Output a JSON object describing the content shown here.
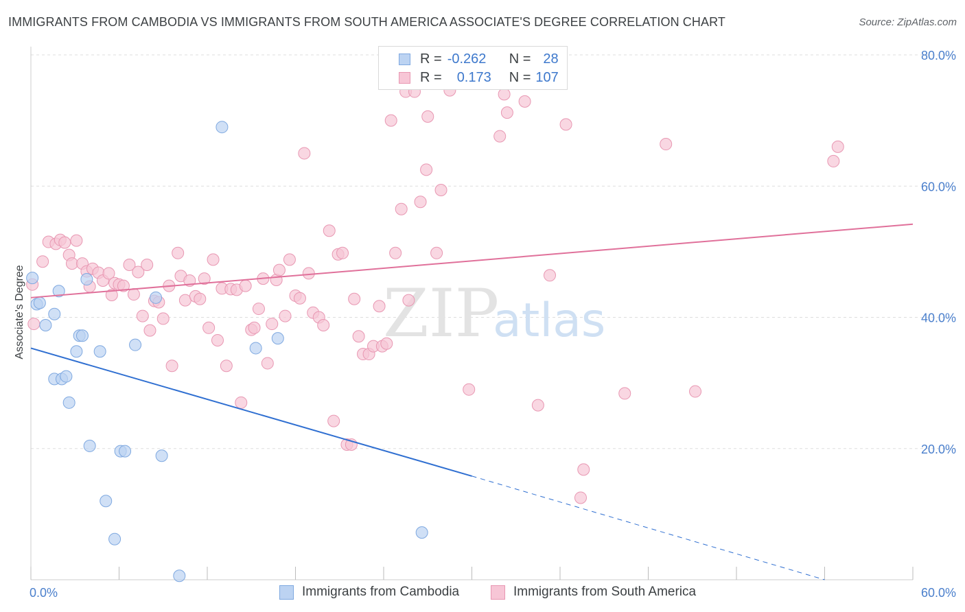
{
  "header": {
    "title": "IMMIGRANTS FROM CAMBODIA VS IMMIGRANTS FROM SOUTH AMERICA ASSOCIATE'S DEGREE CORRELATION CHART",
    "source": "Source: ZipAtlas.com"
  },
  "watermark": {
    "zip": "ZIP",
    "atlas": "atlas"
  },
  "legend": {
    "rows": [
      {
        "r_label": "R =",
        "r_value": "-0.262",
        "n_label": "N =",
        "n_value": "28"
      },
      {
        "r_label": "R =",
        "r_value": "0.173",
        "n_label": "N =",
        "n_value": "107"
      }
    ]
  },
  "bottom_legend": {
    "series1": "Immigrants from Cambodia",
    "series2": "Immigrants from South America"
  },
  "colors": {
    "cambodia_fill": "#bcd3f2",
    "cambodia_stroke": "#7ea8e0",
    "cambodia_line": "#2f6fd1",
    "south_america_fill": "#f7c6d6",
    "south_america_stroke": "#e897b2",
    "south_america_line": "#e0709a",
    "tick_text": "#4a7fcc",
    "grid": "#dddddd"
  },
  "chart_data": {
    "type": "scatter",
    "title": "IMMIGRANTS FROM CAMBODIA VS IMMIGRANTS FROM SOUTH AMERICA ASSOCIATE'S DEGREE CORRELATION CHART",
    "xlabel": "",
    "ylabel": "Associate's Degree",
    "xlim": [
      0,
      60
    ],
    "ylim": [
      0,
      80
    ],
    "x_tick_labels": [
      "0.0%",
      "60.0%"
    ],
    "y_tick_labels": [
      "20.0%",
      "40.0%",
      "60.0%",
      "80.0%"
    ],
    "y_ticks": [
      20,
      40,
      60,
      80
    ],
    "grid": true,
    "legend_position": "top-center",
    "series": [
      {
        "name": "Immigrants from Cambodia",
        "color": "#7ea8e0",
        "r": -0.262,
        "n": 28,
        "trend": {
          "x": [
            0,
            30
          ],
          "y": [
            35.3,
            15.8
          ],
          "dashed_to": [
            54,
            0
          ]
        },
        "points": [
          [
            0.1,
            46.0
          ],
          [
            0.4,
            42.0
          ],
          [
            1.0,
            38.8
          ],
          [
            1.6,
            30.6
          ],
          [
            1.9,
            44.0
          ],
          [
            1.6,
            40.5
          ],
          [
            2.1,
            30.6
          ],
          [
            2.4,
            31.0
          ],
          [
            2.6,
            27.0
          ],
          [
            3.1,
            34.8
          ],
          [
            3.3,
            37.2
          ],
          [
            3.5,
            37.2
          ],
          [
            3.8,
            45.8
          ],
          [
            4.0,
            20.4
          ],
          [
            4.7,
            34.8
          ],
          [
            5.1,
            12.0
          ],
          [
            5.7,
            6.2
          ],
          [
            6.1,
            19.6
          ],
          [
            6.4,
            19.6
          ],
          [
            7.1,
            35.8
          ],
          [
            8.5,
            43.0
          ],
          [
            8.9,
            18.9
          ],
          [
            10.1,
            0.6
          ],
          [
            13.0,
            69.0
          ],
          [
            15.3,
            35.3
          ],
          [
            16.8,
            36.8
          ],
          [
            26.6,
            7.2
          ],
          [
            0.6,
            42.2
          ]
        ]
      },
      {
        "name": "Immigrants from South America",
        "color": "#e897b2",
        "r": 0.173,
        "n": 107,
        "trend": {
          "x": [
            0,
            60
          ],
          "y": [
            43.0,
            54.2
          ]
        },
        "points": [
          [
            0.1,
            45.0
          ],
          [
            0.2,
            39.0
          ],
          [
            0.8,
            48.5
          ],
          [
            1.2,
            51.5
          ],
          [
            1.7,
            51.2
          ],
          [
            2.0,
            51.8
          ],
          [
            2.3,
            51.4
          ],
          [
            2.6,
            49.5
          ],
          [
            2.8,
            48.2
          ],
          [
            3.1,
            51.7
          ],
          [
            3.5,
            48.2
          ],
          [
            3.8,
            47.0
          ],
          [
            4.0,
            44.7
          ],
          [
            4.2,
            47.4
          ],
          [
            4.6,
            46.8
          ],
          [
            4.9,
            45.6
          ],
          [
            5.3,
            46.7
          ],
          [
            5.5,
            43.4
          ],
          [
            5.7,
            45.2
          ],
          [
            6.0,
            45.0
          ],
          [
            6.3,
            44.8
          ],
          [
            6.7,
            48.0
          ],
          [
            7.0,
            43.5
          ],
          [
            7.3,
            46.9
          ],
          [
            7.6,
            40.2
          ],
          [
            7.9,
            48.0
          ],
          [
            8.1,
            38.0
          ],
          [
            8.4,
            42.5
          ],
          [
            8.7,
            42.3
          ],
          [
            9.0,
            39.8
          ],
          [
            9.4,
            44.8
          ],
          [
            9.6,
            32.6
          ],
          [
            10.0,
            49.8
          ],
          [
            10.2,
            46.3
          ],
          [
            10.5,
            42.6
          ],
          [
            10.8,
            45.6
          ],
          [
            11.2,
            43.2
          ],
          [
            11.5,
            42.8
          ],
          [
            11.8,
            45.9
          ],
          [
            12.1,
            38.4
          ],
          [
            12.4,
            48.8
          ],
          [
            12.7,
            36.5
          ],
          [
            13.0,
            44.4
          ],
          [
            13.3,
            32.6
          ],
          [
            13.6,
            44.3
          ],
          [
            14.0,
            44.2
          ],
          [
            14.3,
            27.0
          ],
          [
            14.6,
            44.8
          ],
          [
            15.0,
            38.1
          ],
          [
            15.2,
            38.4
          ],
          [
            15.5,
            41.3
          ],
          [
            15.8,
            45.9
          ],
          [
            16.1,
            33.0
          ],
          [
            16.4,
            39.0
          ],
          [
            16.7,
            45.7
          ],
          [
            16.9,
            47.2
          ],
          [
            17.3,
            40.2
          ],
          [
            17.6,
            48.8
          ],
          [
            18.0,
            43.3
          ],
          [
            18.3,
            42.9
          ],
          [
            18.6,
            65.0
          ],
          [
            18.9,
            46.7
          ],
          [
            19.2,
            40.7
          ],
          [
            19.6,
            40.0
          ],
          [
            19.9,
            38.8
          ],
          [
            20.3,
            53.2
          ],
          [
            20.6,
            24.2
          ],
          [
            20.9,
            49.6
          ],
          [
            21.2,
            49.8
          ],
          [
            21.5,
            20.6
          ],
          [
            21.8,
            20.6
          ],
          [
            22.0,
            42.8
          ],
          [
            22.3,
            37.1
          ],
          [
            22.6,
            34.4
          ],
          [
            23.0,
            34.4
          ],
          [
            23.3,
            35.6
          ],
          [
            23.7,
            41.7
          ],
          [
            23.9,
            35.6
          ],
          [
            24.2,
            36.0
          ],
          [
            24.5,
            70.0
          ],
          [
            24.8,
            49.8
          ],
          [
            25.2,
            56.5
          ],
          [
            25.5,
            74.4
          ],
          [
            25.7,
            42.6
          ],
          [
            26.1,
            74.4
          ],
          [
            26.5,
            57.6
          ],
          [
            26.9,
            62.5
          ],
          [
            27.0,
            70.6
          ],
          [
            27.6,
            49.8
          ],
          [
            27.9,
            59.4
          ],
          [
            28.5,
            74.6
          ],
          [
            29.5,
            77.8
          ],
          [
            29.8,
            29.0
          ],
          [
            31.9,
            67.6
          ],
          [
            32.2,
            74.0
          ],
          [
            32.4,
            71.2
          ],
          [
            33.6,
            72.9
          ],
          [
            34.5,
            26.6
          ],
          [
            35.3,
            46.4
          ],
          [
            36.4,
            69.4
          ],
          [
            37.4,
            12.5
          ],
          [
            37.6,
            16.8
          ],
          [
            40.4,
            28.4
          ],
          [
            43.2,
            66.4
          ],
          [
            45.2,
            28.7
          ],
          [
            54.6,
            63.8
          ],
          [
            54.9,
            66.0
          ]
        ]
      }
    ]
  }
}
